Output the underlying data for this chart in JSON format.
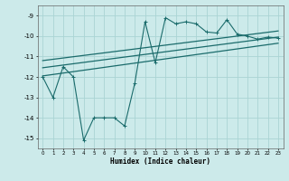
{
  "xlabel": "Humidex (Indice chaleur)",
  "bg_color": "#cceaea",
  "grid_color": "#aad4d4",
  "line_color": "#1a6b6b",
  "xlim": [
    -0.5,
    23.5
  ],
  "ylim": [
    -15.5,
    -8.5
  ],
  "yticks": [
    -15,
    -14,
    -13,
    -12,
    -11,
    -10,
    -9
  ],
  "xticks": [
    0,
    1,
    2,
    3,
    4,
    5,
    6,
    7,
    8,
    9,
    10,
    11,
    12,
    13,
    14,
    15,
    16,
    17,
    18,
    19,
    20,
    21,
    22,
    23
  ],
  "main_x": [
    0,
    1,
    2,
    3,
    4,
    5,
    6,
    7,
    8,
    9,
    10,
    11,
    12,
    13,
    14,
    15,
    16,
    17,
    18,
    19,
    20,
    21,
    22,
    23
  ],
  "main_y": [
    -12.0,
    -13.0,
    -11.5,
    -12.0,
    -15.1,
    -14.0,
    -14.0,
    -14.0,
    -14.4,
    -12.3,
    -9.3,
    -11.3,
    -9.1,
    -9.4,
    -9.3,
    -9.4,
    -9.8,
    -9.85,
    -9.2,
    -9.9,
    -10.0,
    -10.15,
    -10.05,
    -10.1
  ],
  "trend1_x": [
    0,
    23
  ],
  "trend1_y": [
    -11.55,
    -10.05
  ],
  "trend2_x": [
    0,
    23
  ],
  "trend2_y": [
    -11.2,
    -9.75
  ],
  "trend3_x": [
    0,
    23
  ],
  "trend3_y": [
    -11.95,
    -10.35
  ]
}
